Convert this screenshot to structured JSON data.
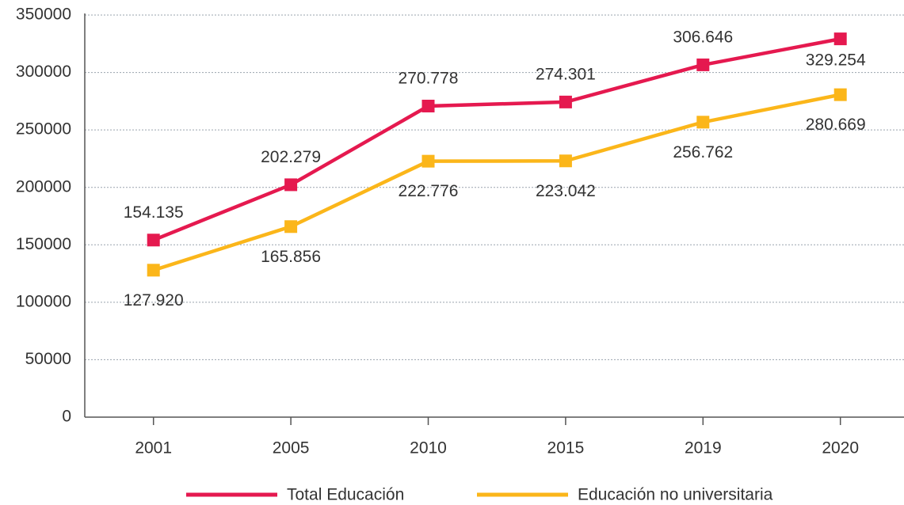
{
  "chart_data": {
    "type": "line",
    "categories": [
      "2001",
      "2005",
      "2010",
      "2015",
      "2019",
      "2020"
    ],
    "series": [
      {
        "name": "Total Educación",
        "color": "#e5194f",
        "values": [
          154135,
          202279,
          270778,
          274301,
          306646,
          329254
        ],
        "value_labels": [
          "154.135",
          "202.279",
          "270.778",
          "274.301",
          "306.646",
          "329.254"
        ]
      },
      {
        "name": "Educación no universitaria",
        "color": "#fbb61a",
        "values": [
          127920,
          165856,
          222776,
          223042,
          256762,
          280669
        ],
        "value_labels": [
          "127.920",
          "165.856",
          "222.776",
          "223.042",
          "256.762",
          "280.669"
        ]
      }
    ],
    "ylim": [
      0,
      350000
    ],
    "yticks": [
      0,
      50000,
      100000,
      150000,
      200000,
      250000,
      300000,
      350000
    ],
    "grid": true,
    "legend": "bottom"
  }
}
